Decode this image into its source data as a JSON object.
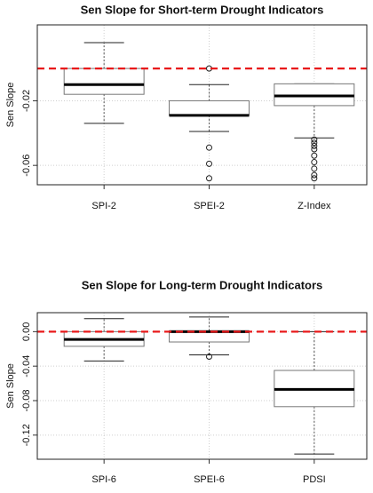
{
  "chart_data": [
    {
      "type": "box",
      "title": "Sen Slope for Short-term Drought Indicators",
      "y_label": "Sen Slope",
      "categories": [
        "SPI-2",
        "SPEI-2",
        "Z-Index"
      ],
      "boxes": [
        {
          "whisker_low": -0.034,
          "q1": -0.016,
          "median": -0.01,
          "q3": 0.0,
          "whisker_high": 0.016,
          "outliers": []
        },
        {
          "whisker_low": -0.039,
          "q1": -0.029,
          "median": -0.029,
          "q3": -0.02,
          "whisker_high": -0.01,
          "outliers": [
            0.0,
            -0.049,
            -0.059,
            -0.068
          ]
        },
        {
          "whisker_low": -0.043,
          "q1": -0.023,
          "median": -0.017,
          "q3": -0.0095,
          "whisker_high": -0.0095,
          "outliers": [
            -0.044,
            -0.046,
            -0.048,
            -0.05,
            -0.054,
            -0.058,
            -0.062,
            -0.066,
            -0.068
          ]
        }
      ],
      "box_color": "#ffffff",
      "reference_line": 0,
      "reference_color": "#e8191a",
      "ylim": [
        -0.072,
        0.027
      ],
      "yticks": [
        -0.06,
        -0.02
      ],
      "grid": true
    },
    {
      "type": "box",
      "title": "Sen Slope for Long-term Drought Indicators",
      "y_label": "Sen Slope",
      "categories": [
        "SPI-6",
        "SPEI-6",
        "PDSI"
      ],
      "boxes": [
        {
          "whisker_low": -0.034,
          "q1": -0.017,
          "median": -0.009,
          "q3": 0.0,
          "whisker_high": 0.015,
          "outliers": []
        },
        {
          "whisker_low": -0.027,
          "q1": -0.012,
          "median": 0.0,
          "q3": 0.001,
          "whisker_high": 0.017,
          "outliers": [
            -0.029
          ]
        },
        {
          "whisker_low": -0.142,
          "q1": -0.087,
          "median": -0.067,
          "q3": -0.045,
          "whisker_high": 0.0,
          "outliers": []
        }
      ],
      "box_color": "#ffffff",
      "reference_line": 0,
      "reference_color": "#e8191a",
      "ylim": [
        -0.148,
        0.022
      ],
      "yticks": [
        {
          "value": 0,
          "label": "0.00"
        },
        -0.04,
        -0.08,
        -0.12
      ],
      "grid": true
    }
  ]
}
